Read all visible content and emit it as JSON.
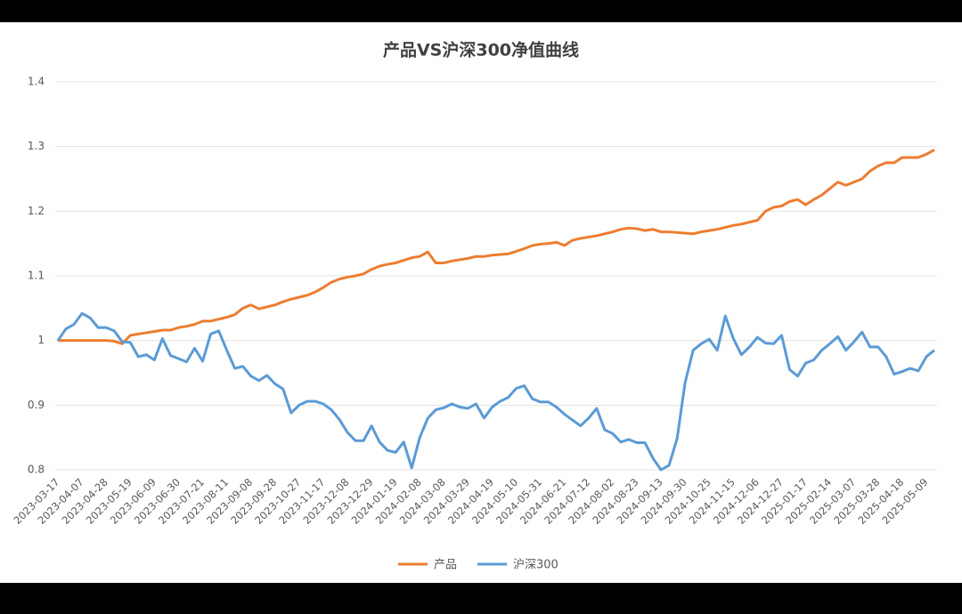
{
  "chart_data": {
    "type": "line",
    "title": "产品VS沪深300净值曲线",
    "categories": [
      "2023-03-17",
      null,
      null,
      "2023-04-07",
      null,
      null,
      "2023-04-28",
      null,
      null,
      "2023-05-19",
      null,
      null,
      "2023-06-09",
      null,
      null,
      "2023-06-30",
      null,
      null,
      "2023-07-21",
      null,
      null,
      "2023-08-11",
      null,
      null,
      "2023-09-08",
      null,
      null,
      "2023-09-28",
      null,
      null,
      "2023-10-27",
      null,
      null,
      "2023-11-17",
      null,
      null,
      "2023-12-08",
      null,
      null,
      "2023-12-29",
      null,
      null,
      "2024-01-19",
      null,
      null,
      "2024-02-08",
      null,
      null,
      "2024-03-08",
      null,
      null,
      "2024-03-29",
      null,
      null,
      "2024-04-19",
      null,
      null,
      "2024-05-10",
      null,
      null,
      "2024-05-31",
      null,
      null,
      "2024-06-21",
      null,
      null,
      "2024-07-12",
      null,
      null,
      "2024-08-02",
      null,
      null,
      "2024-08-23",
      null,
      null,
      "2024-09-13",
      null,
      null,
      "2024-09-30",
      null,
      null,
      "2024-10-25",
      null,
      null,
      "2024-11-15",
      null,
      null,
      "2024-12-06",
      null,
      null,
      "2024-12-27",
      null,
      null,
      "2025-01-17",
      null,
      null,
      "2025-02-14",
      null,
      null,
      "2025-03-07",
      null,
      null,
      "2025-03-28",
      null,
      null,
      "2025-04-18",
      null,
      null,
      "2025-05-09",
      null
    ],
    "series": [
      {
        "name": "产品",
        "color": "#ed7d31",
        "values": [
          1.0,
          1.0,
          1.0,
          1.0,
          1.0,
          1.0,
          1.0,
          0.999,
          0.995,
          1.008,
          1.01,
          1.012,
          1.014,
          1.016,
          1.016,
          1.02,
          1.022,
          1.025,
          1.03,
          1.03,
          1.033,
          1.036,
          1.04,
          1.05,
          1.055,
          1.049,
          1.052,
          1.055,
          1.06,
          1.064,
          1.067,
          1.07,
          1.075,
          1.082,
          1.09,
          1.095,
          1.098,
          1.1,
          1.103,
          1.11,
          1.115,
          1.118,
          1.12,
          1.124,
          1.128,
          1.13,
          1.137,
          1.12,
          1.12,
          1.123,
          1.125,
          1.127,
          1.13,
          1.13,
          1.132,
          1.133,
          1.134,
          1.138,
          1.142,
          1.147,
          1.149,
          1.15,
          1.152,
          1.147,
          1.155,
          1.158,
          1.16,
          1.162,
          1.165,
          1.168,
          1.172,
          1.174,
          1.173,
          1.17,
          1.172,
          1.168,
          1.168,
          1.167,
          1.166,
          1.165,
          1.168,
          1.17,
          1.172,
          1.175,
          1.178,
          1.18,
          1.183,
          1.186,
          1.2,
          1.206,
          1.208,
          1.215,
          1.218,
          1.21,
          1.218,
          1.225,
          1.235,
          1.245,
          1.24,
          1.245,
          1.25,
          1.262,
          1.27,
          1.275,
          1.275,
          1.283,
          1.283,
          1.283,
          1.288,
          1.295
        ]
      },
      {
        "name": "沪深300",
        "color": "#5b9bd5",
        "values": [
          1.0,
          1.018,
          1.025,
          1.042,
          1.035,
          1.02,
          1.02,
          1.015,
          0.998,
          0.997,
          0.975,
          0.978,
          0.97,
          1.003,
          0.977,
          0.972,
          0.967,
          0.988,
          0.968,
          1.01,
          1.015,
          0.985,
          0.957,
          0.96,
          0.945,
          0.938,
          0.946,
          0.933,
          0.925,
          0.888,
          0.9,
          0.906,
          0.906,
          0.902,
          0.893,
          0.878,
          0.858,
          0.845,
          0.845,
          0.868,
          0.843,
          0.83,
          0.827,
          0.843,
          0.803,
          0.85,
          0.88,
          0.893,
          0.896,
          0.902,
          0.897,
          0.895,
          0.902,
          0.88,
          0.897,
          0.906,
          0.912,
          0.926,
          0.93,
          0.91,
          0.905,
          0.905,
          0.897,
          0.886,
          0.877,
          0.868,
          0.88,
          0.895,
          0.862,
          0.856,
          0.843,
          0.847,
          0.842,
          0.842,
          0.818,
          0.8,
          0.807,
          0.848,
          0.935,
          0.985,
          0.995,
          1.002,
          0.985,
          1.038,
          1.003,
          0.978,
          0.99,
          1.005,
          0.996,
          0.995,
          1.008,
          0.955,
          0.945,
          0.965,
          0.97,
          0.985,
          0.995,
          1.006,
          0.985,
          0.998,
          1.013,
          0.99,
          0.99,
          0.975,
          0.948,
          0.952,
          0.957,
          0.953,
          0.975,
          0.985
        ]
      }
    ],
    "ylim": [
      0.8,
      1.4
    ],
    "yticks": [
      0.8,
      0.9,
      1,
      1.1,
      1.2,
      1.3,
      1.4
    ],
    "grid": true,
    "legend": "bottom"
  }
}
